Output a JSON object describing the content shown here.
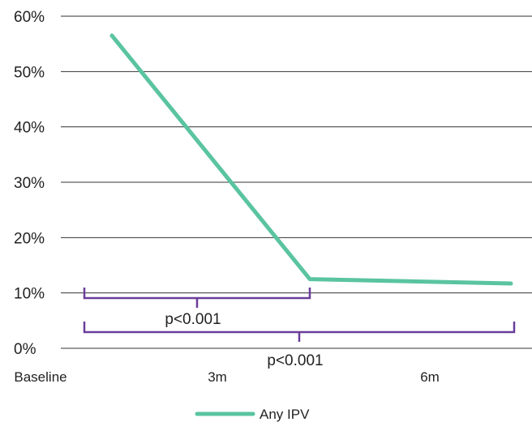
{
  "chart_data": {
    "type": "line",
    "title": "",
    "xlabel": "",
    "ylabel": "",
    "categories": [
      "Baseline",
      "3m",
      "6m"
    ],
    "series": [
      {
        "name": "Any IPV",
        "color": "#5ac4a0",
        "points": [
          {
            "x": "Baseline",
            "y": 56.5
          },
          {
            "x": "3m",
            "y": 12.5
          },
          {
            "x": "6m",
            "y": 11.7
          }
        ]
      }
    ],
    "ylim": [
      0,
      60
    ],
    "yticks": [
      0,
      10,
      20,
      30,
      40,
      50,
      60
    ],
    "ytick_labels": [
      "0%",
      "10%",
      "20%",
      "30%",
      "40%",
      "50%",
      "60%"
    ],
    "grid": "horizontal",
    "legend": "bottom-center",
    "annotations": [
      {
        "from": "Baseline",
        "to": "3m",
        "text": "p<0.001",
        "color": "#6a3d9a"
      },
      {
        "from": "Baseline",
        "to": "6m",
        "text": "p<0.001",
        "color": "#6a3d9a"
      }
    ]
  }
}
